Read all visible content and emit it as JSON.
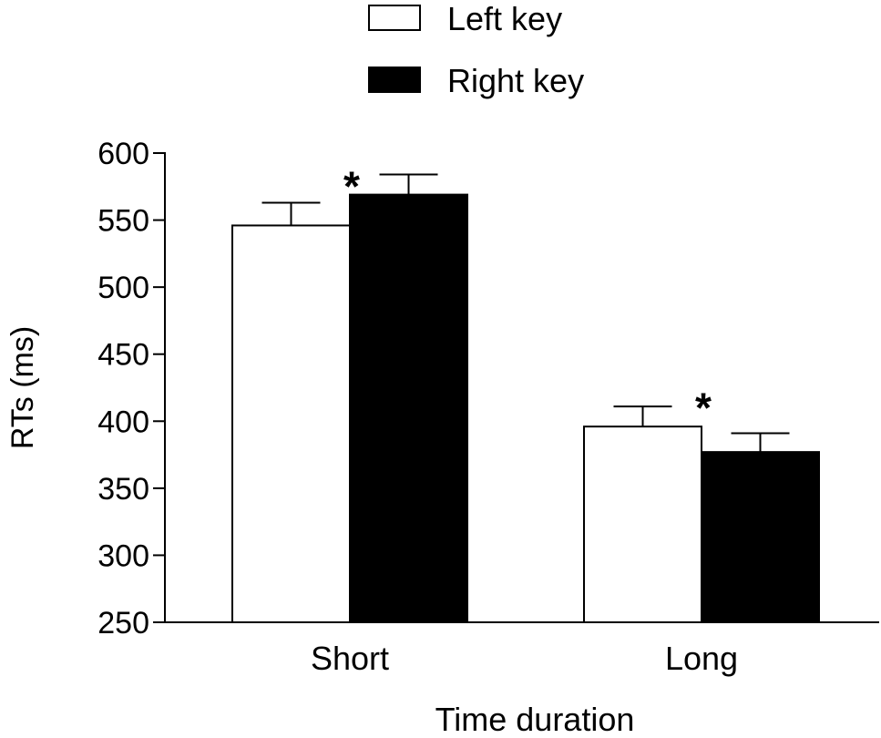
{
  "chart_data": {
    "type": "bar",
    "title": "",
    "xlabel": "Time duration",
    "ylabel": "RTs (ms)",
    "ylim": [
      250,
      600
    ],
    "yticks": [
      250,
      300,
      350,
      400,
      450,
      500,
      550,
      600
    ],
    "categories": [
      "Short",
      "Long"
    ],
    "series": [
      {
        "name": "Left key",
        "values": [
          546,
          396
        ],
        "errors": [
          17,
          15
        ],
        "color": "#ffffff"
      },
      {
        "name": "Right key",
        "values": [
          569,
          377
        ],
        "errors": [
          15,
          14
        ],
        "color": "#000000"
      }
    ],
    "annotations": [
      {
        "text": "*",
        "category": "Short",
        "y": 582
      },
      {
        "text": "*",
        "category": "Long",
        "y": 417
      }
    ],
    "legend": {
      "position": "top-center"
    }
  }
}
